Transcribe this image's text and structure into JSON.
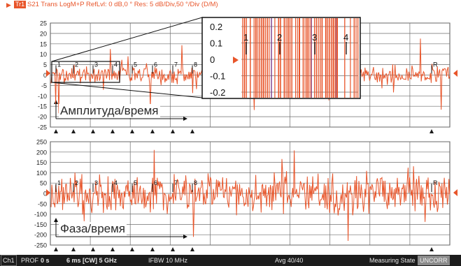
{
  "header": {
    "trace_badge": "Tr1",
    "trace_text": "S21 Trans LogM+P RefLvl: 0  dB,0 ° Res: 5  dB/Div,50 °/Div  (D/M)"
  },
  "amp_plot": {
    "y_ticks": [
      "25",
      "20",
      "15",
      "10",
      "5",
      "0",
      "-5",
      "-10",
      "-15",
      "-20",
      "-25"
    ],
    "label": "Амплитуда/время",
    "marker_labels": [
      "1",
      "2",
      "3",
      "4",
      "5",
      "6",
      "7",
      "8",
      "R"
    ]
  },
  "phase_plot": {
    "y_ticks": [
      "250",
      "200",
      "150",
      "100",
      "50",
      "0",
      "-50",
      "-100",
      "-150",
      "-200",
      "-250"
    ],
    "label": "Фаза/время",
    "marker_labels": [
      "1",
      "2",
      "3",
      "4",
      "5",
      "6",
      "7",
      "8",
      "R"
    ]
  },
  "zoom_inset": {
    "y_ticks": [
      "0.2",
      "0.1",
      "0",
      "-0.1",
      "-0.2"
    ],
    "marker_labels": [
      "1",
      "2",
      "3",
      "4"
    ]
  },
  "colors": {
    "trace": "#e8552a",
    "grid": "#6e6e6e",
    "marker_fill": "#1c1c1c",
    "status_bg": "#1c1c1c"
  },
  "status": {
    "channel": "Ch1",
    "prof": "PROF",
    "time": "0 s",
    "sweep": "6 ms [CW] 5 GHz",
    "ifbw": "IFBW 10 MHz",
    "avg": "Avg 40/40",
    "state": "Measuring State",
    "uncorr": "UNCORR"
  }
}
